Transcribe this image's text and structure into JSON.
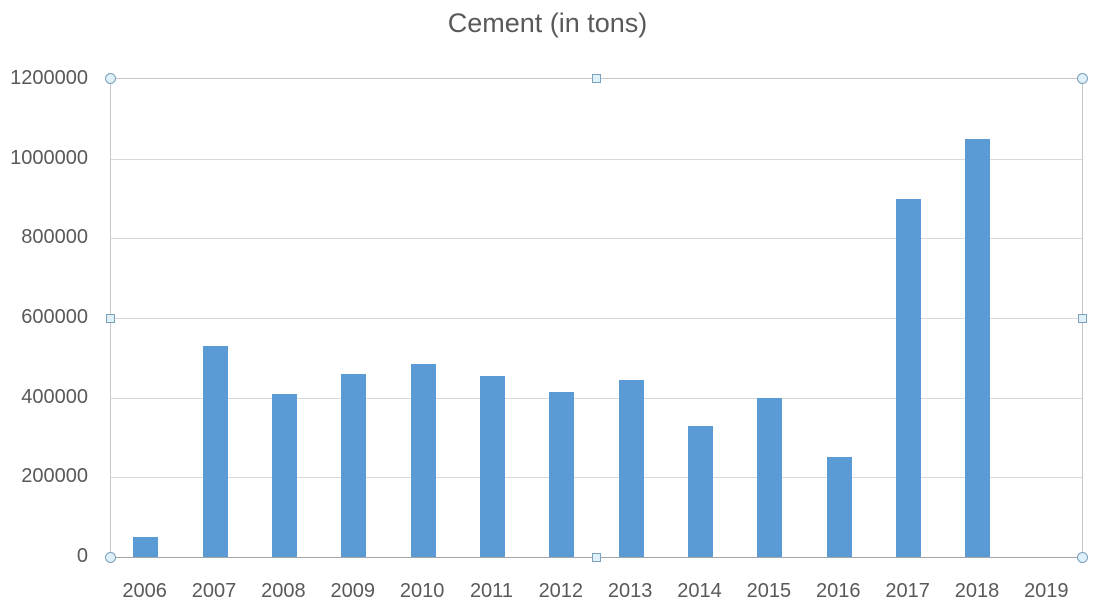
{
  "chart_data": {
    "type": "bar",
    "title": "Cement (in tons)",
    "categories": [
      "2006",
      "2007",
      "2008",
      "2009",
      "2010",
      "2011",
      "2012",
      "2013",
      "2014",
      "2015",
      "2016",
      "2017",
      "2018",
      "2019"
    ],
    "values": [
      50000,
      530000,
      410000,
      460000,
      485000,
      455000,
      415000,
      445000,
      330000,
      400000,
      250000,
      900000,
      1050000,
      0
    ],
    "xlabel": "",
    "ylabel": "",
    "ylim": [
      0,
      1200000
    ],
    "yticks": [
      0,
      200000,
      400000,
      600000,
      800000,
      1000000,
      1200000
    ],
    "ytick_labels": [
      "0",
      "200000",
      "400000",
      "600000",
      "800000",
      "1000000",
      "1200000"
    ],
    "legend_position": "none",
    "grid": true,
    "bar_color": "#5B9BD5",
    "gridline_color": "#D9D9D9",
    "axis_line_color": "#A6A6A6",
    "frame_color": "#C9C9C9",
    "text_color": "#595959",
    "background_color": "#FFFFFF"
  },
  "selection": {
    "state": "plot-area-selected",
    "handle_fill": "#DEF0F8",
    "handle_border": "#7DA0BC"
  }
}
